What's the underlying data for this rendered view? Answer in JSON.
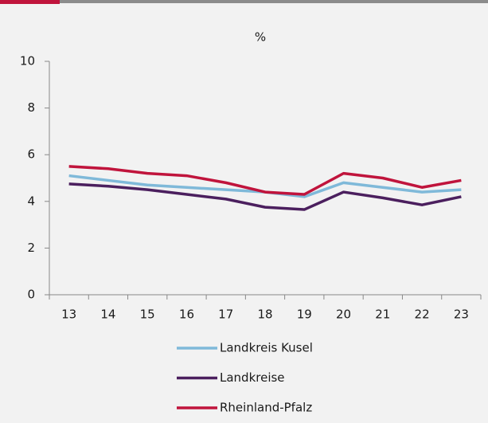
{
  "chart_data": {
    "type": "line",
    "title": "%",
    "categories": [
      "13",
      "14",
      "15",
      "16",
      "17",
      "18",
      "19",
      "20",
      "21",
      "22",
      "23"
    ],
    "series": [
      {
        "name": "Landkreis Kusel",
        "color": "#7fb9d9",
        "values": [
          5.1,
          4.9,
          4.7,
          4.6,
          4.5,
          4.4,
          4.2,
          4.8,
          4.6,
          4.4,
          4.5
        ]
      },
      {
        "name": "Landkreise",
        "color": "#4b1f5e",
        "values": [
          4.75,
          4.65,
          4.5,
          4.3,
          4.1,
          3.75,
          3.65,
          4.4,
          4.15,
          3.85,
          4.2
        ]
      },
      {
        "name": "Rheinland-Pfalz",
        "color": "#c0143c",
        "values": [
          5.5,
          5.4,
          5.2,
          5.1,
          4.8,
          4.4,
          4.3,
          5.2,
          5.0,
          4.6,
          4.9
        ]
      }
    ],
    "ylim": [
      0,
      10
    ],
    "yticks": [
      0,
      2,
      4,
      6,
      8,
      10
    ],
    "grid": false
  }
}
